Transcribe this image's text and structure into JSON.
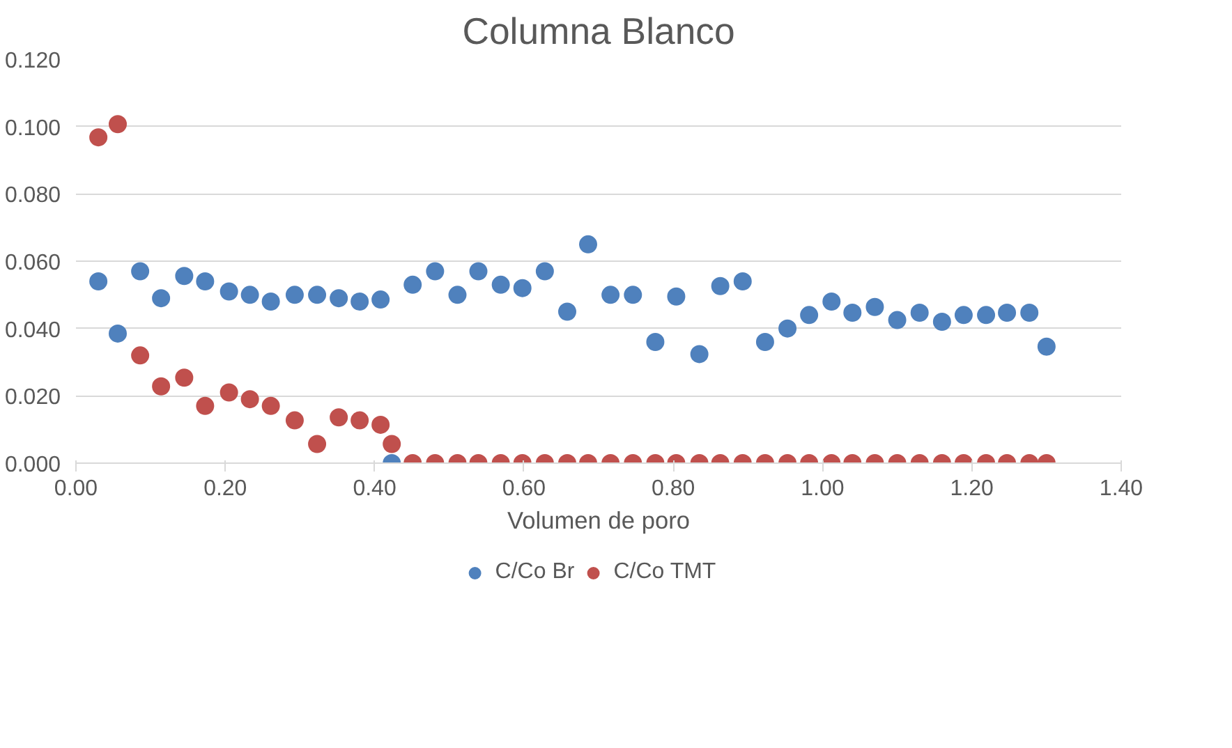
{
  "chart_data": {
    "type": "scatter",
    "title": "Columna Blanco",
    "xlabel": "Volumen de poro",
    "x": [
      0.03,
      0.056,
      0.086,
      0.114,
      0.145,
      0.173,
      0.205,
      0.233,
      0.261,
      0.293,
      0.323,
      0.352,
      0.38,
      0.408,
      0.423,
      0.451,
      0.481,
      0.511,
      0.539,
      0.569,
      0.598,
      0.628,
      0.658,
      0.686,
      0.716,
      0.746,
      0.776,
      0.804,
      0.835,
      0.863,
      0.893,
      0.923,
      0.953,
      0.982,
      1.012,
      1.04,
      1.07,
      1.1,
      1.13,
      1.16,
      1.189,
      1.219,
      1.247,
      1.277,
      1.3
    ],
    "series": [
      {
        "name": "C/Co Br",
        "color": "#4f81bd",
        "values": [
          0.054,
          0.0385,
          0.057,
          0.049,
          0.0556,
          0.054,
          0.051,
          0.05,
          0.048,
          0.05,
          0.05,
          0.049,
          0.048,
          0.0486,
          0.0,
          0.053,
          0.057,
          0.05,
          0.057,
          0.053,
          0.052,
          0.057,
          0.045,
          0.065,
          0.05,
          0.05,
          0.036,
          0.0495,
          0.0324,
          0.0526,
          0.054,
          0.036,
          0.04,
          0.044,
          0.048,
          0.0447,
          0.0464,
          0.0425,
          0.0447,
          0.042,
          0.044,
          0.044,
          0.0447,
          0.0447,
          0.0346
        ]
      },
      {
        "name": "C/Co TMT",
        "color": "#c0504d",
        "values": [
          0.0968,
          0.1007,
          0.032,
          0.0228,
          0.0254,
          0.017,
          0.021,
          0.019,
          0.017,
          0.0127,
          0.0057,
          0.0136,
          0.0127,
          0.0114,
          0.0057,
          0,
          0,
          0,
          0,
          0,
          0,
          0,
          0,
          0,
          0,
          0,
          0,
          0,
          0,
          0,
          0,
          0,
          0,
          0,
          0,
          0,
          0,
          0,
          0,
          0,
          0,
          0,
          0,
          0,
          0
        ]
      }
    ],
    "xlim": [
      0,
      1.4
    ],
    "ylim": [
      0,
      0.12
    ],
    "xticks": [
      {
        "value": 0,
        "label": "0.00"
      },
      {
        "value": 0.2,
        "label": "0.20"
      },
      {
        "value": 0.4,
        "label": "0.40"
      },
      {
        "value": 0.6,
        "label": "0.60"
      },
      {
        "value": 0.8,
        "label": "0.80"
      },
      {
        "value": 1.0,
        "label": "1.00"
      },
      {
        "value": 1.2,
        "label": "1.20"
      },
      {
        "value": 1.4,
        "label": "1.40"
      }
    ],
    "yticks": [
      {
        "value": 0,
        "label": "0.000"
      },
      {
        "value": 0.02,
        "label": "0.020"
      },
      {
        "value": 0.04,
        "label": "0.040"
      },
      {
        "value": 0.06,
        "label": "0.060"
      },
      {
        "value": 0.08,
        "label": "0.080"
      },
      {
        "value": 0.1,
        "label": "0.100"
      },
      {
        "value": 0.12,
        "label": "0.120"
      }
    ],
    "grid": "y",
    "legend": "bottom",
    "marker": "circle"
  }
}
